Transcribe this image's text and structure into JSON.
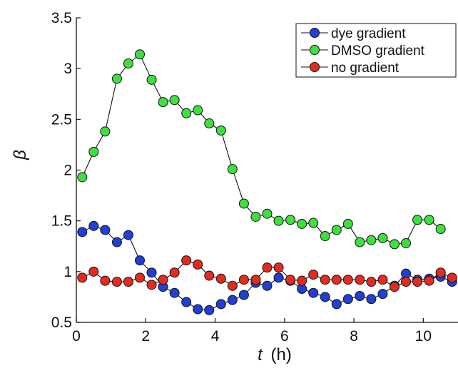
{
  "chart_data": {
    "type": "line",
    "title": "",
    "xlabel": "t",
    "xlabel_unit": "(h)",
    "ylabel": "β",
    "xlim": [
      0,
      11
    ],
    "ylim": [
      0.5,
      3.5
    ],
    "xticks": [
      0,
      2,
      4,
      6,
      8,
      10
    ],
    "yticks": [
      0.5,
      1,
      1.5,
      2,
      2.5,
      3,
      3.5
    ],
    "xtick_labels": [
      "0",
      "2",
      "4",
      "6",
      "8",
      "10"
    ],
    "ytick_labels": [
      "0.5",
      "1",
      "1.5",
      "2",
      "2.5",
      "3",
      "3.5"
    ],
    "grid": false,
    "legend_position": "top-right",
    "series": [
      {
        "name": "dye gradient",
        "color": "#1f3fd6",
        "x": [
          0.17,
          0.5,
          0.83,
          1.17,
          1.5,
          1.83,
          2.17,
          2.5,
          2.83,
          3.17,
          3.5,
          3.83,
          4.17,
          4.5,
          4.83,
          5.17,
          5.5,
          5.83,
          6.17,
          6.5,
          6.83,
          7.17,
          7.5,
          7.83,
          8.17,
          8.5,
          8.83,
          9.17,
          9.5,
          9.83,
          10.17,
          10.5,
          10.83
        ],
        "y": [
          1.39,
          1.45,
          1.41,
          1.29,
          1.36,
          1.11,
          0.99,
          0.85,
          0.79,
          0.7,
          0.63,
          0.62,
          0.68,
          0.72,
          0.77,
          0.89,
          0.86,
          0.94,
          0.91,
          0.83,
          0.79,
          0.75,
          0.68,
          0.73,
          0.76,
          0.73,
          0.78,
          0.86,
          0.98,
          0.92,
          0.93,
          0.95,
          0.9
        ]
      },
      {
        "name": "DMSO gradient",
        "color": "#3ee03e",
        "x": [
          0.17,
          0.5,
          0.83,
          1.17,
          1.5,
          1.83,
          2.17,
          2.5,
          2.83,
          3.17,
          3.5,
          3.83,
          4.17,
          4.5,
          4.83,
          5.17,
          5.5,
          5.83,
          6.17,
          6.5,
          6.83,
          7.17,
          7.5,
          7.83,
          8.17,
          8.5,
          8.83,
          9.17,
          9.5,
          9.83,
          10.17,
          10.5
        ],
        "y": [
          1.93,
          2.18,
          2.38,
          2.9,
          3.05,
          3.14,
          2.89,
          2.67,
          2.69,
          2.56,
          2.59,
          2.46,
          2.39,
          2.01,
          1.67,
          1.54,
          1.57,
          1.5,
          1.51,
          1.47,
          1.48,
          1.35,
          1.41,
          1.47,
          1.29,
          1.31,
          1.33,
          1.27,
          1.28,
          1.51,
          1.51,
          1.42
        ]
      },
      {
        "name": "no gradient",
        "color": "#e52b1f",
        "x": [
          0.17,
          0.5,
          0.83,
          1.17,
          1.5,
          1.83,
          2.17,
          2.5,
          2.83,
          3.17,
          3.5,
          3.83,
          4.17,
          4.5,
          4.83,
          5.17,
          5.5,
          5.83,
          6.17,
          6.5,
          6.83,
          7.17,
          7.5,
          7.83,
          8.17,
          8.5,
          8.83,
          9.17,
          9.5,
          9.83,
          10.17,
          10.5,
          10.83
        ],
        "y": [
          0.94,
          1.0,
          0.91,
          0.9,
          0.9,
          0.94,
          0.87,
          0.92,
          0.99,
          1.11,
          1.07,
          0.96,
          0.93,
          0.86,
          0.92,
          0.92,
          1.04,
          1.04,
          0.92,
          0.91,
          0.97,
          0.92,
          0.92,
          0.92,
          0.92,
          0.9,
          0.92,
          0.85,
          0.9,
          0.9,
          0.91,
          0.99,
          0.94
        ]
      }
    ]
  }
}
